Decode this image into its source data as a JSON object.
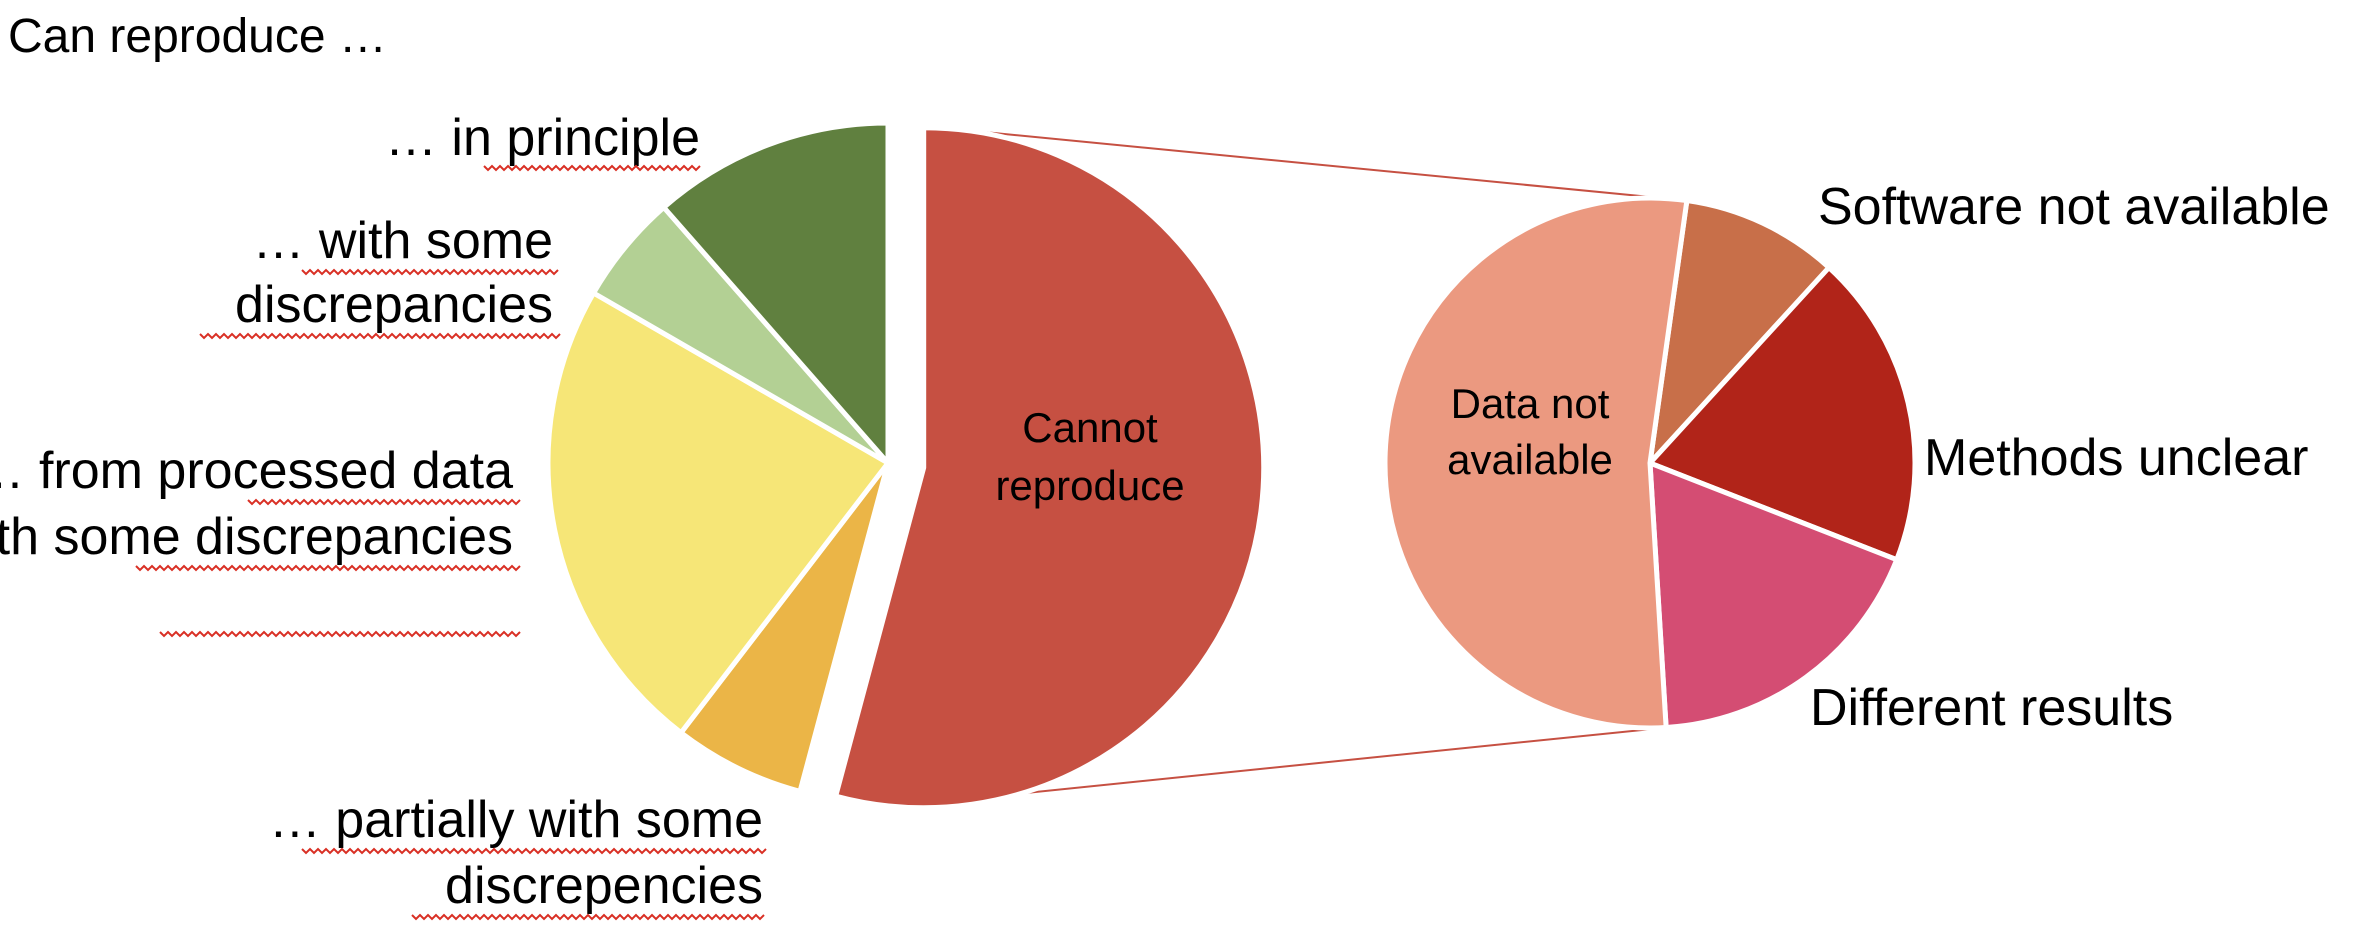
{
  "chart_data": [
    {
      "type": "pie",
      "title": "Can reproduce …",
      "categories": [
        "Cannot reproduce",
        "… partially with some discrepencies",
        "… from processed data with some discrepancies",
        "… with some discrepancies",
        "… in principle"
      ],
      "values": [
        52,
        6,
        22,
        5,
        11
      ],
      "colors": [
        "#c65042",
        "#ebb547",
        "#f6e677",
        "#b3d094",
        "#60803f"
      ],
      "exploded": "Cannot reproduce"
    },
    {
      "type": "pie",
      "title": "",
      "breakdown_of": "Cannot reproduce",
      "categories": [
        "Software not available",
        "Methods unclear",
        "Different results",
        "Data not available"
      ],
      "values": [
        9,
        18,
        17,
        50
      ],
      "colors": [
        "#c86f49",
        "#b12419",
        "#d44d73",
        "#eb9980"
      ]
    }
  ]
}
